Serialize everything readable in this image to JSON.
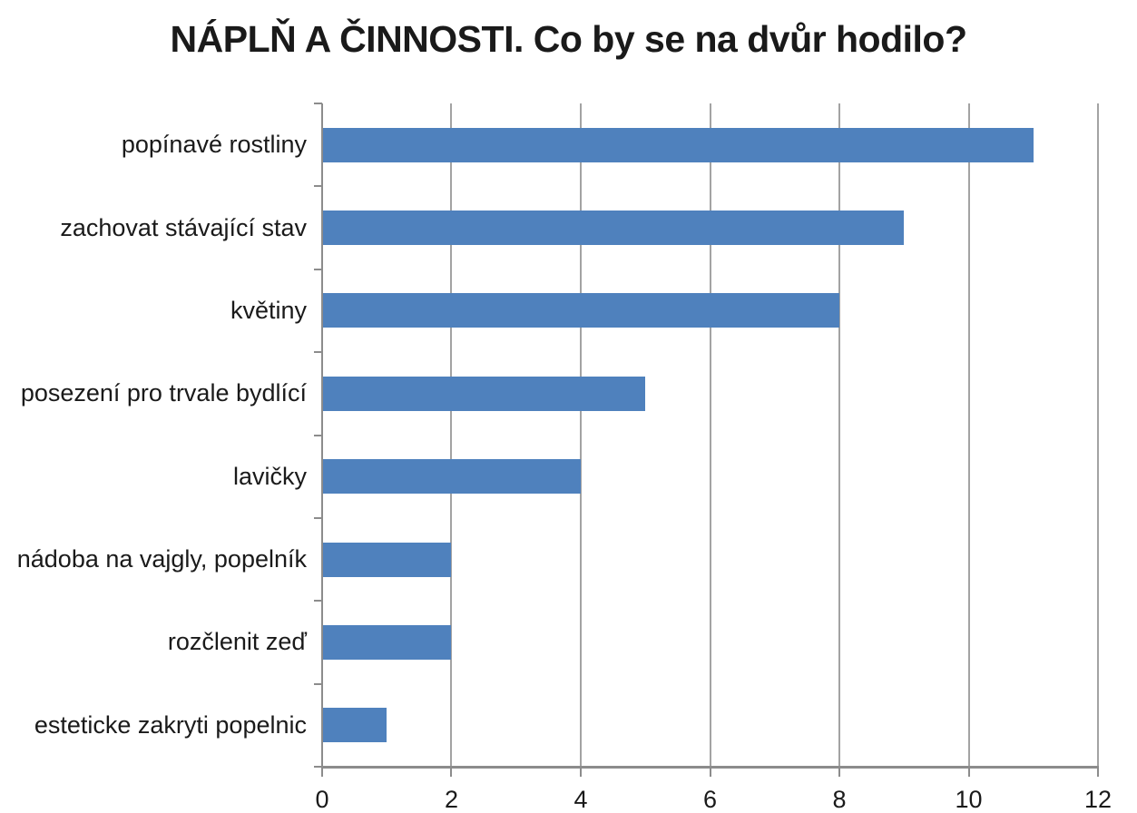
{
  "chart_data": {
    "type": "bar",
    "orientation": "horizontal",
    "title": "NÁPLŇ A ČINNOSTI. Co by se na dvůr hodilo?",
    "categories": [
      "popínavé rostliny",
      "zachovat stávající stav",
      "květiny",
      "posezení pro trvale bydlící",
      "lavičky",
      "nádoba na vajgly, popelník",
      "rozčlenit zeď",
      "esteticke zakryti popelnic"
    ],
    "values": [
      11,
      9,
      8,
      5,
      4,
      2,
      2,
      1
    ],
    "xlabel": "",
    "ylabel": "",
    "xlim": [
      0,
      12
    ],
    "xticks": [
      "0",
      "2",
      "4",
      "6",
      "8",
      "10",
      "12"
    ],
    "grid": "vertical-major",
    "legend": "none",
    "colors": {
      "bar": "#4f81bd",
      "gridline": "#a3a3a3",
      "axis": "#8c8c8c",
      "text": "#1a1a1a",
      "background": "#ffffff"
    }
  }
}
